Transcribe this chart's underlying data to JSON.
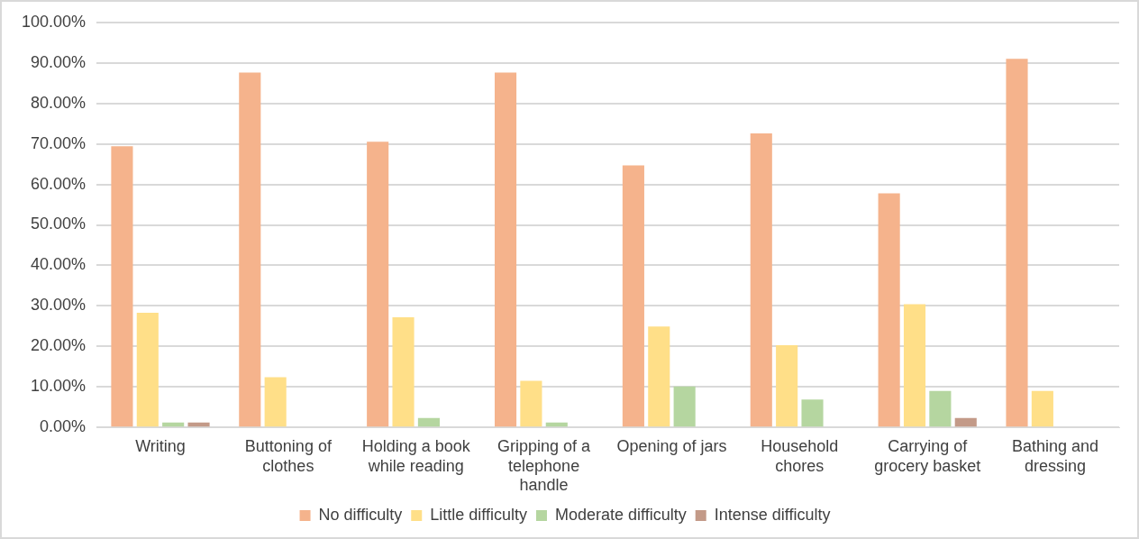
{
  "chart_data": {
    "type": "bar",
    "categories": [
      "Writing",
      "Buttoning of clothes",
      "Holding a book while reading",
      "Gripping of a telephone handle",
      "Opening of jars",
      "Household chores",
      "Carrying of grocery basket",
      "Bathing and dressing"
    ],
    "series": [
      {
        "name": "No difficulty",
        "color": "#f5b38c",
        "values": [
          69.4,
          87.6,
          70.5,
          87.6,
          64.7,
          72.6,
          57.8,
          91.0
        ]
      },
      {
        "name": "Little difficulty",
        "color": "#ffdf88",
        "values": [
          28.3,
          12.4,
          27.2,
          11.5,
          24.9,
          20.3,
          30.4,
          9.0
        ]
      },
      {
        "name": "Moderate difficulty",
        "color": "#b5d6a0",
        "values": [
          1.2,
          0,
          2.3,
          1.2,
          10.1,
          6.9,
          9.0,
          0
        ]
      },
      {
        "name": "Intense difficulty",
        "color": "#c39a88",
        "values": [
          1.2,
          0,
          0,
          0,
          0,
          0,
          2.3,
          0
        ]
      }
    ],
    "ylim": [
      0,
      100
    ],
    "yticks": [
      {
        "value": 0,
        "label": "0.00%"
      },
      {
        "value": 10,
        "label": "10.00%"
      },
      {
        "value": 20,
        "label": "20.00%"
      },
      {
        "value": 30,
        "label": "30.00%"
      },
      {
        "value": 40,
        "label": "40.00%"
      },
      {
        "value": 50,
        "label": "50.00%"
      },
      {
        "value": 60,
        "label": "60.00%"
      },
      {
        "value": 70,
        "label": "70.00%"
      },
      {
        "value": 80,
        "label": "80.00%"
      },
      {
        "value": 90,
        "label": "90.00%"
      },
      {
        "value": 100,
        "label": "100.00%"
      }
    ],
    "grid": "y",
    "legend": "bottom"
  }
}
